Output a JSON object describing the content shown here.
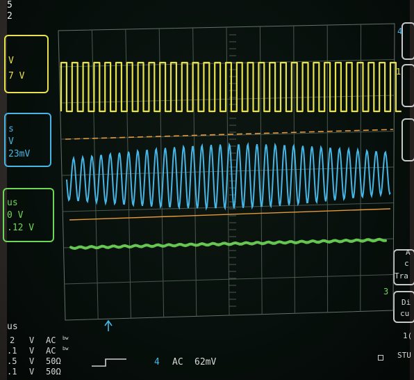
{
  "top_left": {
    "line1": "5",
    "line2": "2"
  },
  "yellow_box": {
    "line1": "V",
    "line2": "7 V",
    "color": "#e8e34a"
  },
  "blue_box": {
    "line1": "s",
    "line2": "V",
    "line3": "23mV",
    "color": "#46b6e6"
  },
  "green_box": {
    "line1": "us",
    "line2": "0 V",
    "line3": ".12 V",
    "color": "#6ed856"
  },
  "right_markers": {
    "ch4": "4",
    "ch1": "1",
    "ch3": "3"
  },
  "right_panel": {
    "p1": "A",
    "p2": "c",
    "p3": "Tra",
    "p4": "Di",
    "p5": "cu",
    "p6": "1(",
    "p7": "STU"
  },
  "bottom_left": {
    "timebase": "us",
    "rows": [
      {
        "volts": "2",
        "unit": "V",
        "coupling": "AC",
        "bw": "bw"
      },
      {
        "volts": ".1",
        "unit": "V",
        "coupling": "AC",
        "bw": "bw"
      },
      {
        "volts": ".5",
        "unit": "V",
        "coupling": "50Ω",
        "bw": ""
      },
      {
        "volts": ".1",
        "unit": "V",
        "coupling": "50Ω",
        "bw": ""
      }
    ]
  },
  "trigger": {
    "channel": "4",
    "coupling": "AC",
    "level": "62mV"
  },
  "colors": {
    "ch1": "#e8e34a",
    "ch2": "#46b6e6",
    "ch3": "#6ed856",
    "cursor": "#e59a3a"
  }
}
